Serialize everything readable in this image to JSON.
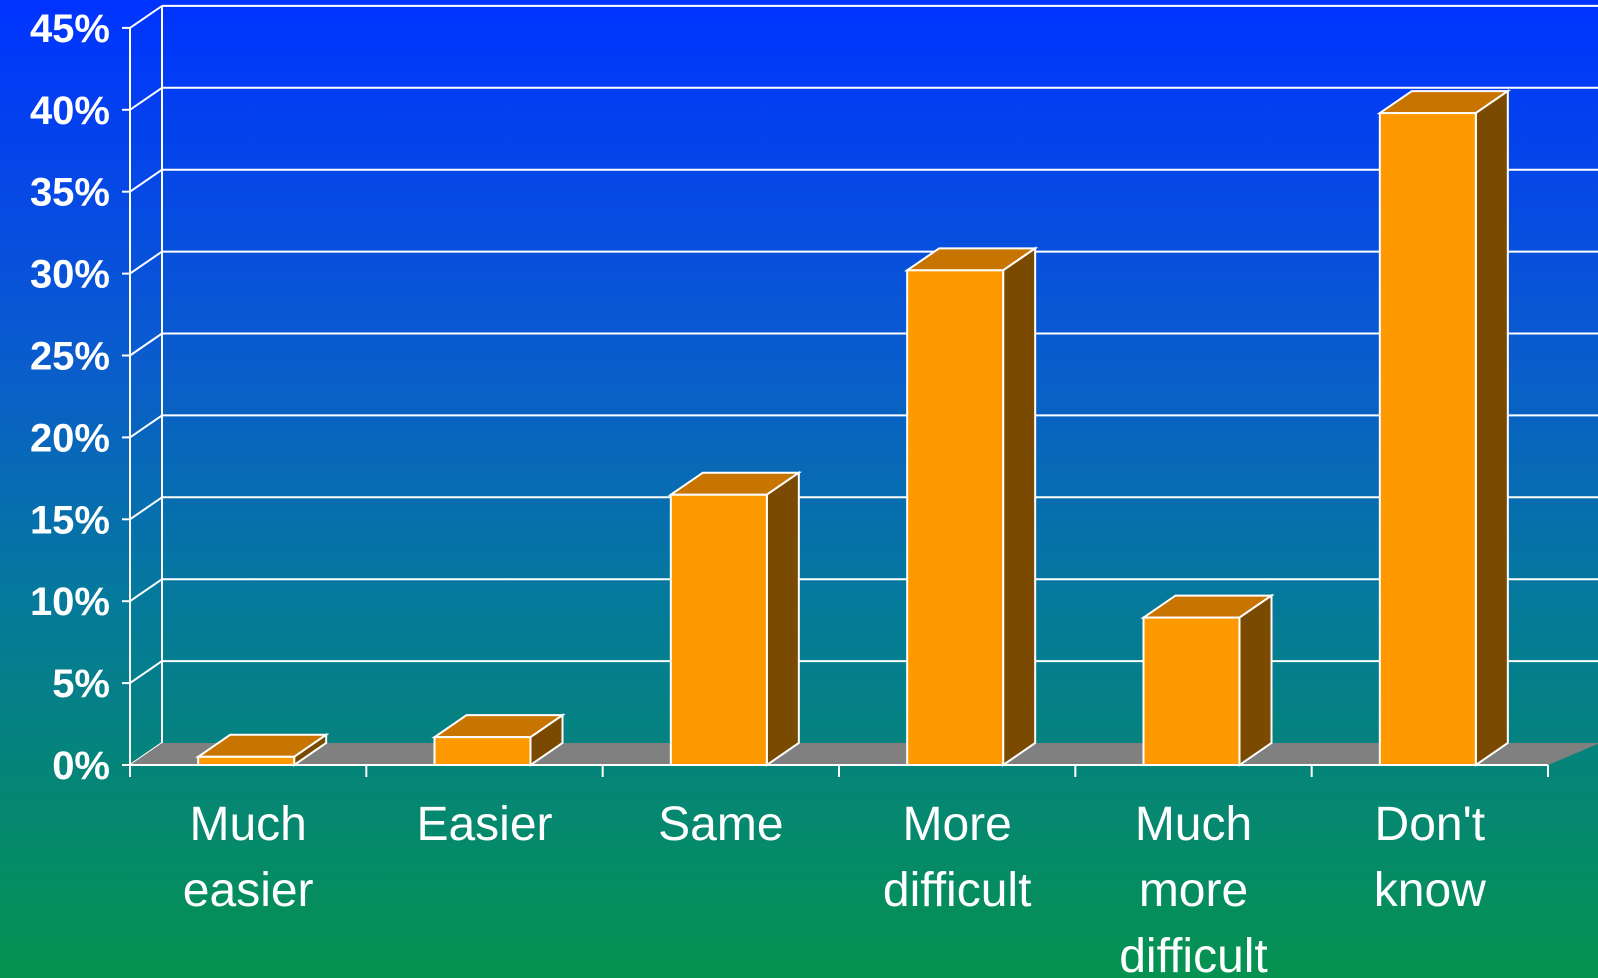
{
  "chart_data": {
    "type": "bar",
    "title": "",
    "xlabel": "",
    "ylabel": "",
    "categories": [
      [
        "Much",
        "easier"
      ],
      [
        "Easier"
      ],
      [
        "Same"
      ],
      [
        "More",
        "difficult"
      ],
      [
        "Much",
        "more",
        "difficult"
      ],
      [
        "Don't",
        "know"
      ]
    ],
    "values": [
      0.5,
      1.7,
      16.5,
      30.2,
      9.0,
      39.8
    ],
    "ylim": [
      0,
      45
    ],
    "yticks": [
      "0%",
      "5%",
      "10%",
      "15%",
      "20%",
      "25%",
      "30%",
      "35%",
      "40%",
      "45%"
    ],
    "grid": true,
    "three_d": true,
    "colors": {
      "bar_front": "#ff9900",
      "bar_top": "#c87400",
      "bar_side": "#7a4a00",
      "floor": "#808080",
      "grid": "#ffffff"
    }
  }
}
